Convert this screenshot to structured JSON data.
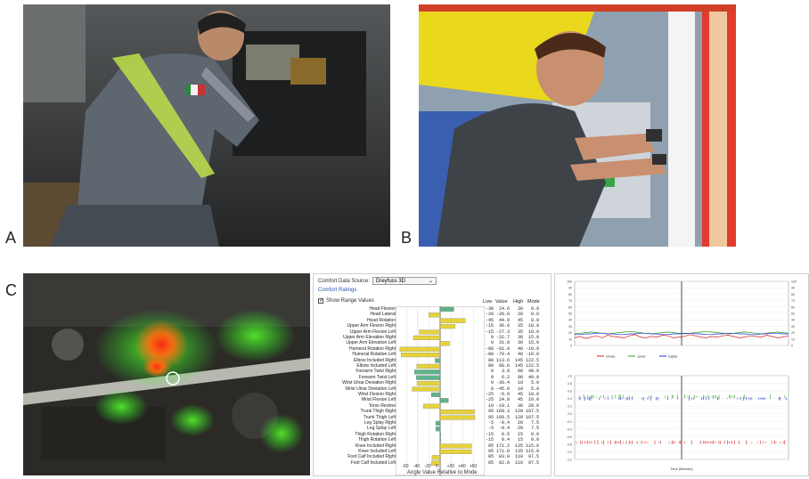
{
  "figure": {
    "panel_letters": {
      "a": "A",
      "b": "B",
      "c": "C"
    }
  },
  "rula_panel": {
    "data_source_label": "Comfort Data Source:",
    "data_source_value": "Dreyfuss 3D",
    "ratings_link": "Comfort Ratings",
    "show_range_label": "Show Range Values",
    "show_range_checked": true,
    "columns": [
      "Low",
      "Value",
      "High",
      "Mode"
    ],
    "x_axis_label": "Angle Value Relative to Mode",
    "x_ticks": [
      "-60",
      "-40",
      "-20",
      "0",
      "+20",
      "+40",
      "+60"
    ],
    "rows": [
      {
        "label": "Head Flexion",
        "low": "-30",
        "value": "24.6",
        "high": "30",
        "mode": "0.0",
        "delta": 24.6,
        "color": "#5fb38a"
      },
      {
        "label": "Head Lateral",
        "low": "-20",
        "value": "-20.0",
        "high": "20",
        "mode": "0.0",
        "delta": -20,
        "color": "#e6d23a"
      },
      {
        "label": "Head Rotation",
        "low": "-45",
        "value": "44.9",
        "high": "45",
        "mode": "0.0",
        "delta": 44.9,
        "color": "#e6d23a"
      },
      {
        "label": "Upper Arm Flexion Right",
        "low": "-15",
        "value": "36.6",
        "high": "35",
        "mode": "10.0",
        "delta": 26.6,
        "color": "#e6d23a"
      },
      {
        "label": "Upper Arm Flexion Left",
        "low": "-15",
        "value": "-27.3",
        "high": "35",
        "mode": "10.0",
        "delta": -37.3,
        "color": "#e6d23a"
      },
      {
        "label": "Upper Arm Elevation Right",
        "low": "0",
        "value": "-32.7",
        "high": "30",
        "mode": "15.0",
        "delta": -47.7,
        "color": "#e6d23a"
      },
      {
        "label": "Upper Arm Elevation Left",
        "low": "0",
        "value": "31.8",
        "high": "30",
        "mode": "15.0",
        "delta": 16.8,
        "color": "#e6d23a"
      },
      {
        "label": "Humeral Rotation Right",
        "low": "-80",
        "value": "-81.9",
        "high": "40",
        "mode": "-10.0",
        "delta": -71.9,
        "color": "#e6d23a"
      },
      {
        "label": "Humeral Rotation Left",
        "low": "-80",
        "value": "-79.4",
        "high": "40",
        "mode": "-10.0",
        "delta": -69.4,
        "color": "#e6d23a"
      },
      {
        "label": "Elbow Included Right",
        "low": "80",
        "value": "113.6",
        "high": "145",
        "mode": "122.5",
        "delta": -8.9,
        "color": "#5fb38a"
      },
      {
        "label": "Elbow Included Left",
        "low": "80",
        "value": "80.6",
        "high": "145",
        "mode": "122.5",
        "delta": -41.9,
        "color": "#e6d23a"
      },
      {
        "label": "Forearm Twist Right",
        "low": "0",
        "value": "3.0",
        "high": "90",
        "mode": "49.0",
        "delta": -46.0,
        "color": "#5fb38a"
      },
      {
        "label": "Forearm Twist Left",
        "low": "0",
        "value": "6.2",
        "high": "90",
        "mode": "49.0",
        "delta": -42.8,
        "color": "#5fb38a"
      },
      {
        "label": "Wrist Ulnar Deviation Right",
        "low": "0",
        "value": "-36.4",
        "high": "10",
        "mode": "5.0",
        "delta": -41.4,
        "color": "#e6d23a"
      },
      {
        "label": "Wrist Ulnar Deviation Left",
        "low": "0",
        "value": "-45.0",
        "high": "10",
        "mode": "5.0",
        "delta": -50.0,
        "color": "#e6d23a"
      },
      {
        "label": "Wrist Flexion Right",
        "low": "-25",
        "value": "-5.9",
        "high": "45",
        "mode": "10.0",
        "delta": -15.9,
        "color": "#5fb38a"
      },
      {
        "label": "Wrist Flexion Left",
        "low": "-25",
        "value": "24.8",
        "high": "45",
        "mode": "10.0",
        "delta": 14.8,
        "color": "#5fb38a"
      },
      {
        "label": "Torso Recline",
        "low": "10",
        "value": "-10.1",
        "high": "30",
        "mode": "20.0",
        "delta": -30.1,
        "color": "#e6d23a"
      },
      {
        "label": "Trunk Thigh Right",
        "low": "95",
        "value": "169.3",
        "high": "120",
        "mode": "107.5",
        "delta": 61.8,
        "color": "#e6d23a"
      },
      {
        "label": "Trunk Thigh Left",
        "low": "95",
        "value": "169.5",
        "high": "120",
        "mode": "107.5",
        "delta": 62.0,
        "color": "#e6d23a"
      },
      {
        "label": "Leg Splay Right",
        "low": "-5",
        "value": "-0.4",
        "high": "20",
        "mode": "7.5",
        "delta": -7.9,
        "color": "#5fb38a"
      },
      {
        "label": "Leg Splay Left",
        "low": "-5",
        "value": "-0.4",
        "high": "20",
        "mode": "7.5",
        "delta": -7.9,
        "color": "#5fb38a"
      },
      {
        "label": "Thigh Rotation Right",
        "low": "-15",
        "value": "0.5",
        "high": "15",
        "mode": "0.0",
        "delta": 0.5,
        "color": "#5fb38a"
      },
      {
        "label": "Thigh Rotation Left",
        "low": "-15",
        "value": "0.4",
        "high": "15",
        "mode": "0.0",
        "delta": 0.4,
        "color": "#5fb38a"
      },
      {
        "label": "Knee Included Right",
        "low": "95",
        "value": "171.2",
        "high": "135",
        "mode": "115.0",
        "delta": 56.2,
        "color": "#e6d23a"
      },
      {
        "label": "Knee Included Left",
        "low": "95",
        "value": "171.0",
        "high": "135",
        "mode": "115.0",
        "delta": 56.0,
        "color": "#e6d23a"
      },
      {
        "label": "Foot Calf Included Right",
        "low": "85",
        "value": "83.0",
        "high": "110",
        "mode": "97.5",
        "delta": -14.5,
        "color": "#e6d23a"
      },
      {
        "label": "Foot Calf Included Left",
        "low": "85",
        "value": "82.0",
        "high": "110",
        "mode": "97.5",
        "delta": -15.5,
        "color": "#e6d23a"
      }
    ]
  },
  "chart_data": [
    {
      "type": "line",
      "ylim": [
        0,
        100
      ],
      "y_ticks_left": [
        "0",
        "10",
        "20",
        "30",
        "40",
        "50",
        "60",
        "70",
        "80",
        "90",
        "100"
      ],
      "y_ticks_right": [
        "0",
        "10",
        "20",
        "30",
        "40",
        "50",
        "60",
        "70",
        "80",
        "90",
        "100"
      ],
      "series": [
        {
          "name": "nmuse",
          "color": "#d02020",
          "values": [
            12,
            14,
            11,
            13,
            15,
            12,
            16,
            14,
            13,
            12,
            15,
            17,
            13,
            12,
            14,
            13,
            16,
            15,
            12,
            13,
            14,
            17,
            15,
            13,
            12,
            14,
            13,
            15,
            16,
            14,
            12,
            13,
            15,
            14,
            13,
            16,
            14,
            12,
            13,
            15
          ]
        },
        {
          "name": "carver",
          "color": "#2aa02a",
          "values": [
            18,
            19,
            20,
            21,
            20,
            19,
            18,
            19,
            20,
            21,
            22,
            21,
            20,
            19,
            18,
            19,
            20,
            21,
            20,
            19,
            18,
            19,
            20,
            21,
            22,
            21,
            20,
            19,
            18,
            19,
            20,
            21,
            20,
            19,
            18,
            19,
            20,
            21,
            20,
            19
          ]
        },
        {
          "name": "bayfee",
          "color": "#2030d0",
          "values": [
            17,
            17,
            18,
            18,
            19,
            19,
            18,
            18,
            17,
            17,
            18,
            18,
            19,
            19,
            18,
            18,
            17,
            17,
            18,
            18,
            19,
            19,
            18,
            18,
            17,
            17,
            18,
            18,
            19,
            19,
            18,
            18,
            17,
            17,
            18,
            18,
            19,
            19,
            18,
            18
          ]
        }
      ],
      "cursor_fraction": 0.5
    },
    {
      "type": "scatter",
      "ylim": [
        -1.2,
        1.0
      ],
      "y_ticks": [
        "1.0",
        "0.8",
        "0.6",
        "0.4",
        "0.2",
        "0.0",
        "-0.2",
        "-0.4",
        "-0.6",
        "-0.8",
        "-1.0",
        "-1.2"
      ],
      "x_label": "Time (Minutes)",
      "series": [
        {
          "name": "green",
          "color": "#2aa02a",
          "level": 0.45
        },
        {
          "name": "blue",
          "color": "#2030d0",
          "level": 0.4
        },
        {
          "name": "red",
          "color": "#d02020",
          "level": -0.75
        }
      ],
      "cursor_fraction": 0.5
    }
  ],
  "colors": {
    "bar_yellow": "#e6d23a",
    "bar_green": "#5fb38a",
    "link_blue": "#2a55b0"
  }
}
